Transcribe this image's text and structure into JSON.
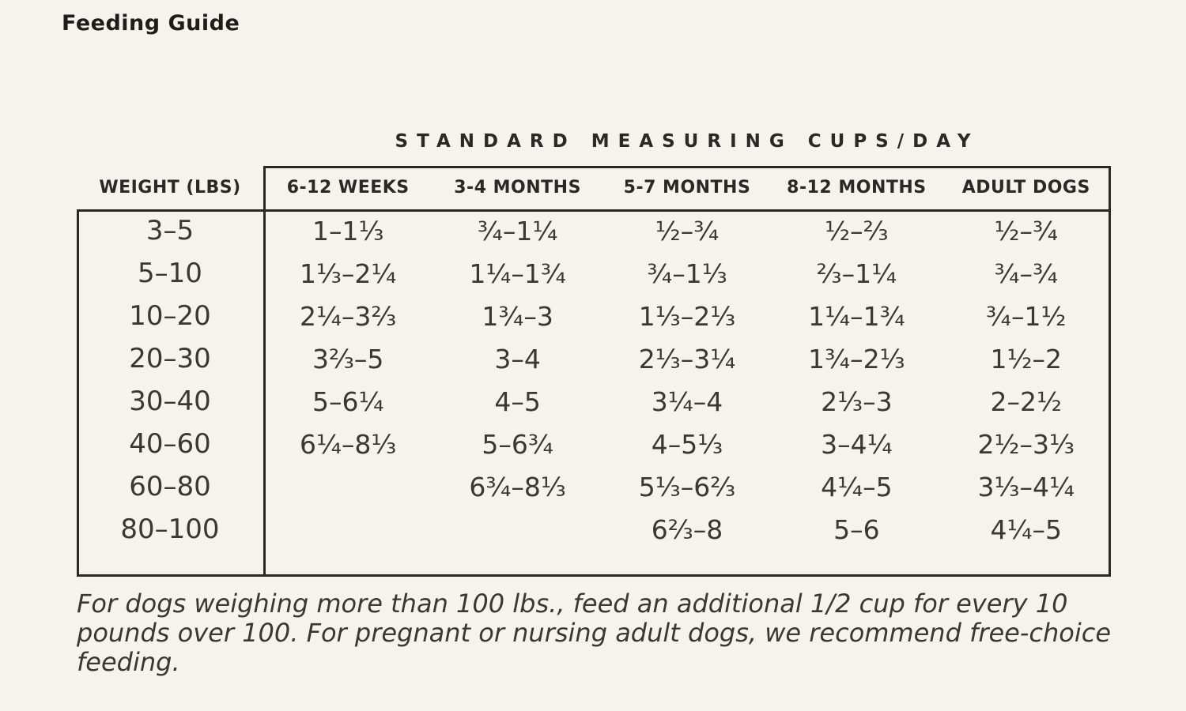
{
  "page": {
    "title": "Feeding Guide",
    "background_color": "#f5f3ee",
    "text_color": "#2b2925",
    "border_color": "#2b2925"
  },
  "table": {
    "section_header": "STANDARD MEASURING CUPS/DAY",
    "columns": [
      "WEIGHT (LBS)",
      "6-12 WEEKS",
      "3-4 MONTHS",
      "5-7 MONTHS",
      "8-12 MONTHS",
      "ADULT DOGS"
    ],
    "rows": [
      {
        "weight": "3–5",
        "cells": [
          "1–1⅓",
          "¾–1¼",
          "½–¾",
          "½–⅔",
          "½–¾"
        ]
      },
      {
        "weight": "5–10",
        "cells": [
          "1⅓–2¼",
          "1¼–1¾",
          "¾–1⅓",
          "⅔–1¼",
          "¾–¾"
        ]
      },
      {
        "weight": "10–20",
        "cells": [
          "2¼–3⅔",
          "1¾–3",
          "1⅓–2⅓",
          "1¼–1¾",
          "¾–1½"
        ]
      },
      {
        "weight": "20–30",
        "cells": [
          "3⅔–5",
          "3–4",
          "2⅓–3¼",
          "1¾–2⅓",
          "1½–2"
        ]
      },
      {
        "weight": "30–40",
        "cells": [
          "5–6¼",
          "4–5",
          "3¼–4",
          "2⅓–3",
          "2–2½"
        ]
      },
      {
        "weight": "40–60",
        "cells": [
          "6¼–8⅓",
          "5–6¾",
          "4–5⅓",
          "3–4¼",
          "2½–3⅓"
        ]
      },
      {
        "weight": "60–80",
        "cells": [
          "",
          "6¾–8⅓",
          "5⅓–6⅔",
          "4¼–5",
          "3⅓–4¼"
        ]
      },
      {
        "weight": "80–100",
        "cells": [
          "",
          "",
          "6⅔–8",
          "5–6",
          "4¼–5"
        ]
      }
    ]
  },
  "footnote": "For dogs weighing more than 100 lbs., feed an additional 1/2 cup for every 10 pounds over 100. For pregnant or nursing adult dogs, we recommend free-choice feeding."
}
